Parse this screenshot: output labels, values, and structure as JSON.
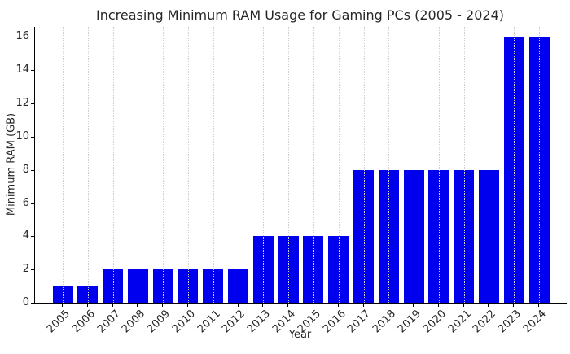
{
  "figure": {
    "background": "#ffffff",
    "spine_color": "#000000",
    "text_color": "#262626"
  },
  "chart_data": {
    "type": "bar",
    "title": "Increasing Minimum RAM Usage for Gaming PCs (2005 - 2024)",
    "xlabel": "Year",
    "ylabel": "Minimum RAM (GB)",
    "categories": [
      "2005",
      "2006",
      "2007",
      "2008",
      "2009",
      "2010",
      "2011",
      "2012",
      "2013",
      "2014",
      "2015",
      "2016",
      "2017",
      "2018",
      "2019",
      "2020",
      "2021",
      "2022",
      "2023",
      "2024"
    ],
    "values": [
      1,
      1,
      2,
      2,
      2,
      2,
      2,
      2,
      4,
      4,
      4,
      4,
      8,
      8,
      8,
      8,
      8,
      8,
      16,
      16
    ],
    "ylim": [
      0,
      16.6
    ],
    "yticks": [
      0,
      2,
      4,
      6,
      8,
      10,
      12,
      14,
      16
    ],
    "bar_color": "#0000EE",
    "grid": "vertical-dotted",
    "grid_color": "#cfcfcf",
    "legend": "none"
  }
}
